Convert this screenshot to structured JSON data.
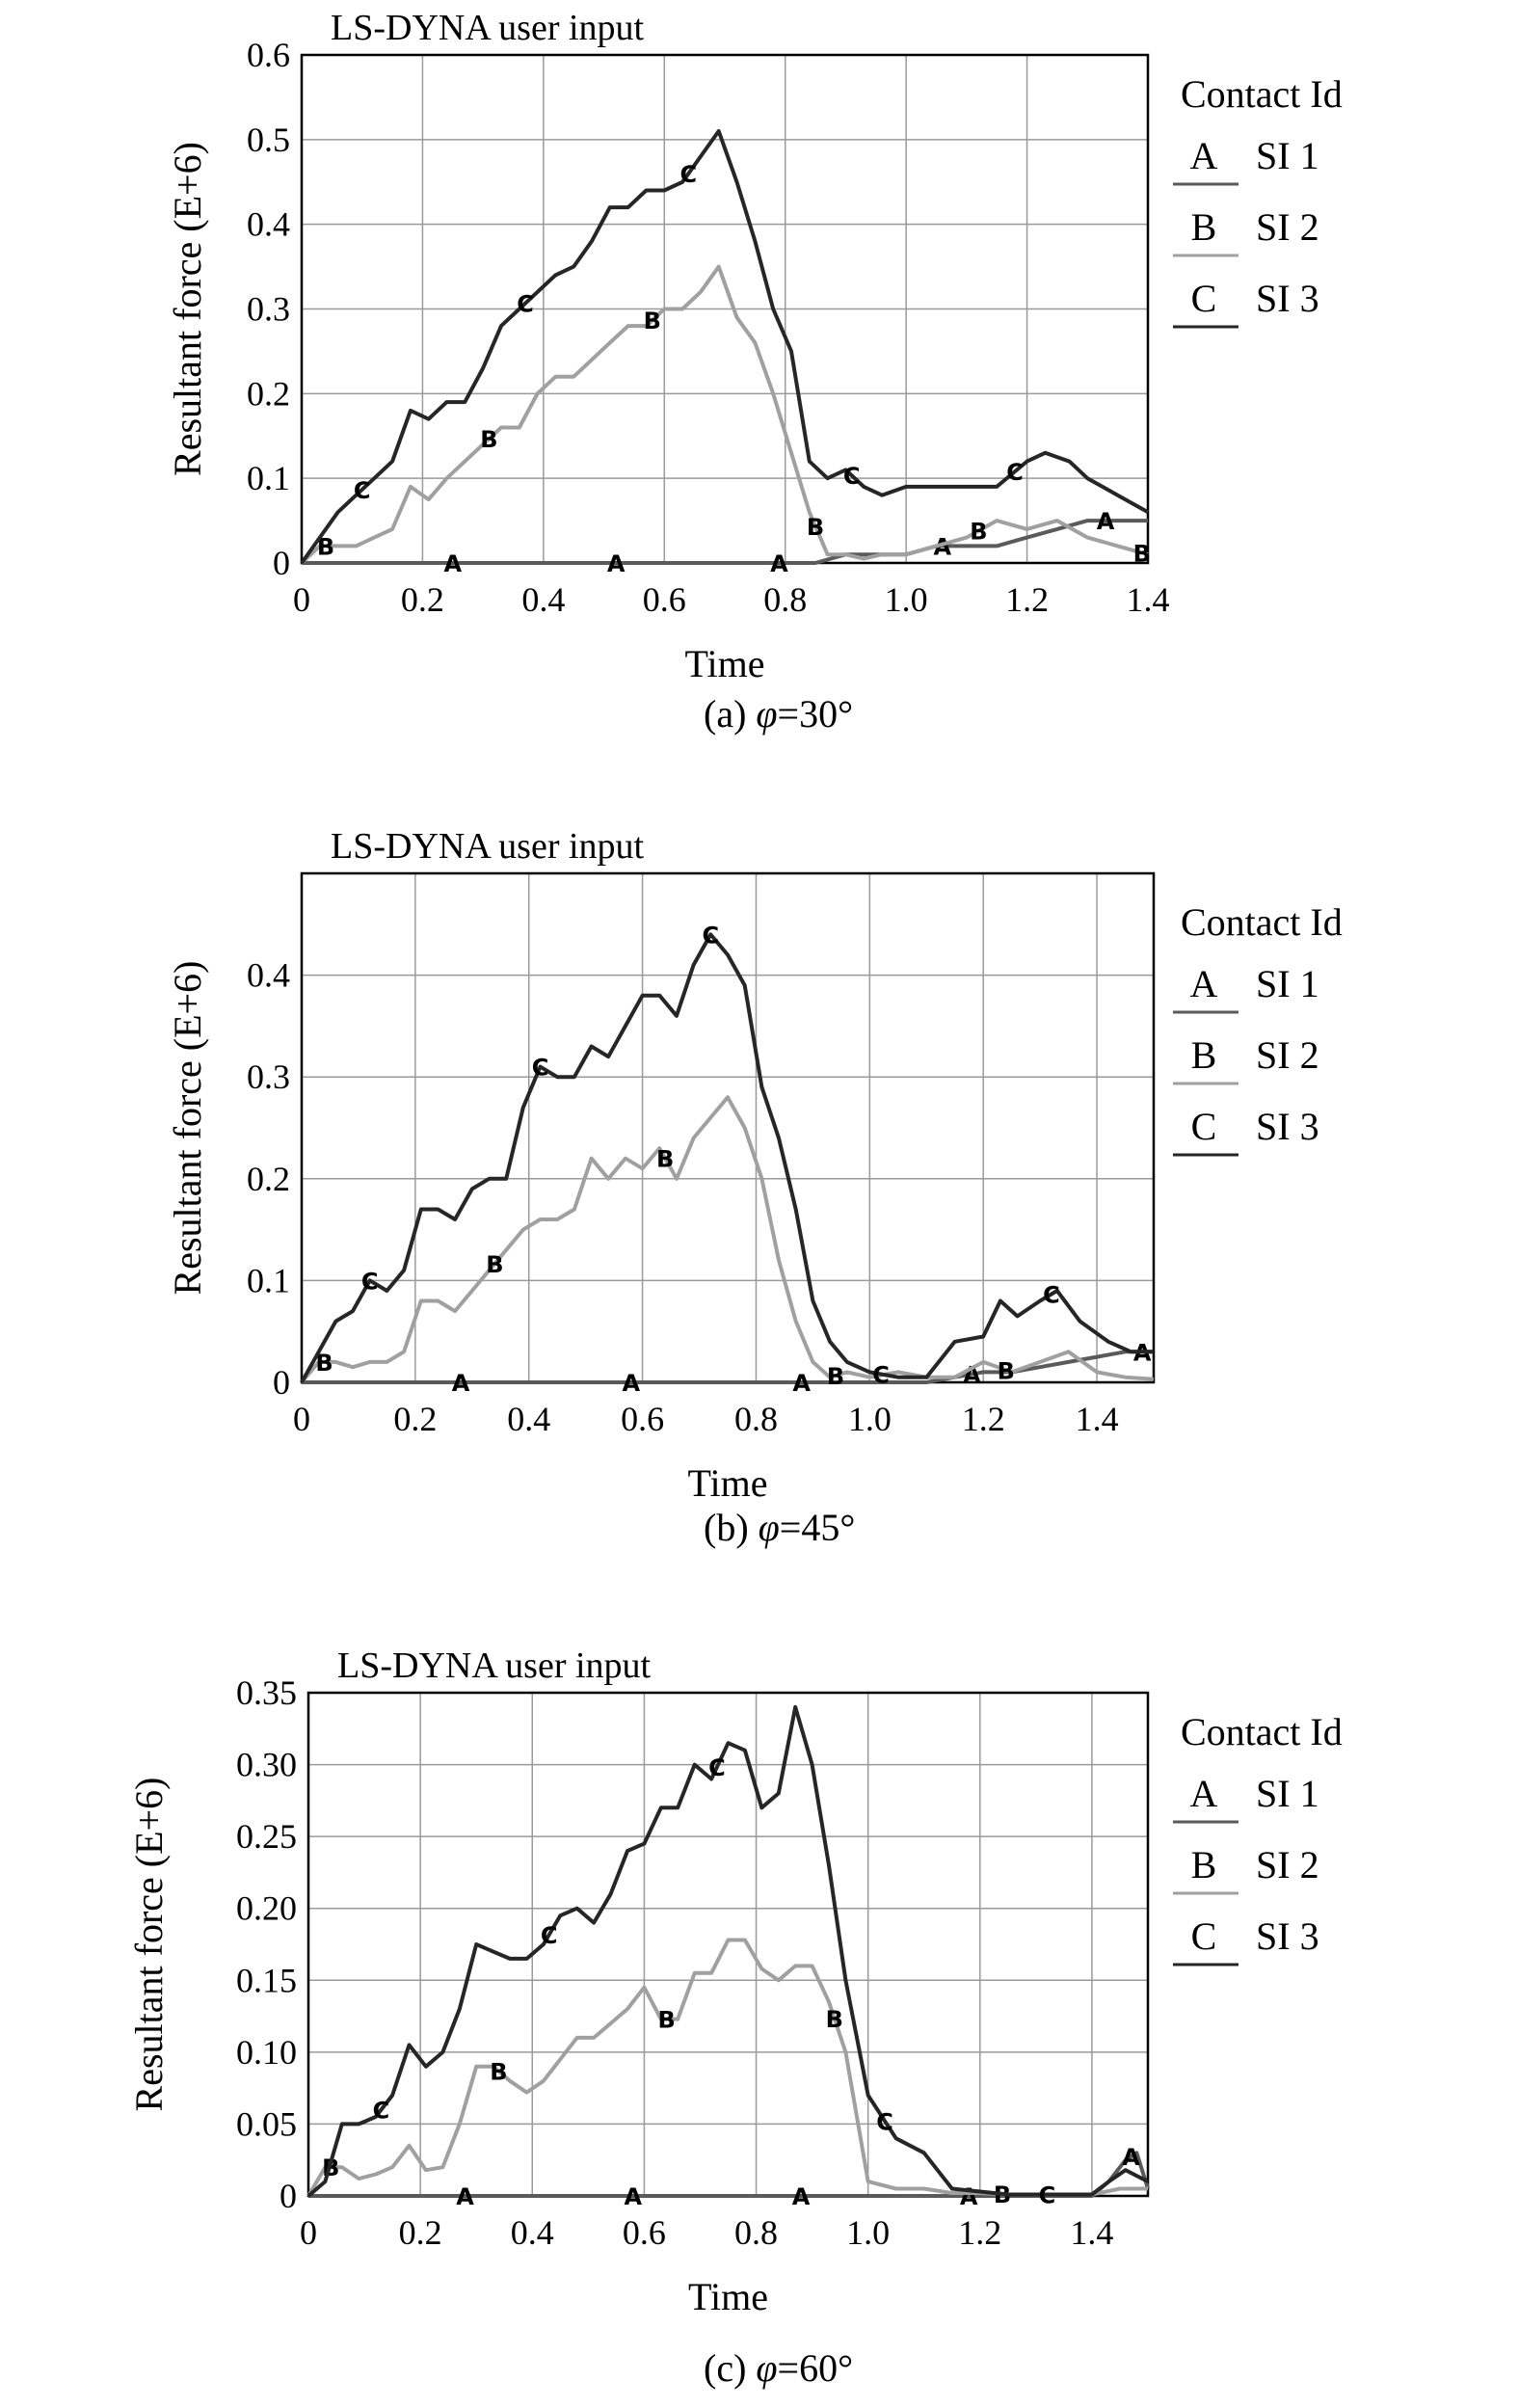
{
  "colors": {
    "A": "#5a5a5a",
    "B": "#a0a0a0",
    "C": "#262626",
    "grid": "#9a9a9a",
    "frame": "#000000",
    "background": "#ffffff"
  },
  "chart_data": [
    {
      "type": "line",
      "title": "LS-DYNA user input",
      "xlabel": "Time",
      "ylabel": "Resultant force (E+6)",
      "caption_prefix": "(a) ",
      "caption_symbol": "φ",
      "caption_value": "=30°",
      "xlim": [
        0,
        1.4
      ],
      "ylim": [
        0,
        0.6
      ],
      "xticks": [
        0,
        0.2,
        0.4,
        0.6,
        0.8,
        1.0,
        1.2,
        1.4
      ],
      "xtick_labels": [
        "0",
        "0.2",
        "0.4",
        "0.6",
        "0.8",
        "1.0",
        "1.2",
        "1.4"
      ],
      "yticks": [
        0,
        0.1,
        0.2,
        0.3,
        0.4,
        0.5,
        0.6
      ],
      "ytick_labels": [
        "0",
        "0.1",
        "0.2",
        "0.3",
        "0.4",
        "0.5",
        "0.6"
      ],
      "grid": true,
      "legend": {
        "title": "Contact Id",
        "position": "right",
        "entries": [
          {
            "key": "A",
            "label": "SI 1"
          },
          {
            "key": "B",
            "label": "SI 2"
          },
          {
            "key": "C",
            "label": "SI 3"
          }
        ]
      },
      "series": [
        {
          "name": "SI 1",
          "key": "A",
          "x": [
            0,
            0.85,
            0.9,
            0.95,
            1.0,
            1.05,
            1.1,
            1.15,
            1.2,
            1.25,
            1.3,
            1.35,
            1.4
          ],
          "y": [
            0,
            0,
            0.01,
            0.01,
            0.01,
            0.02,
            0.02,
            0.02,
            0.03,
            0.04,
            0.05,
            0.05,
            0.05
          ],
          "markers": [
            0.25,
            0.52,
            0.79,
            1.06,
            1.33
          ]
        },
        {
          "name": "SI 2",
          "key": "B",
          "x": [
            0,
            0.03,
            0.06,
            0.09,
            0.12,
            0.15,
            0.18,
            0.21,
            0.24,
            0.27,
            0.3,
            0.33,
            0.36,
            0.39,
            0.42,
            0.45,
            0.48,
            0.51,
            0.54,
            0.57,
            0.6,
            0.63,
            0.66,
            0.69,
            0.72,
            0.75,
            0.78,
            0.81,
            0.84,
            0.87,
            0.9,
            0.93,
            0.96,
            1.0,
            1.05,
            1.1,
            1.15,
            1.2,
            1.25,
            1.3,
            1.35,
            1.4
          ],
          "y": [
            0,
            0.02,
            0.02,
            0.02,
            0.03,
            0.04,
            0.09,
            0.075,
            0.1,
            0.12,
            0.14,
            0.16,
            0.16,
            0.2,
            0.22,
            0.22,
            0.24,
            0.26,
            0.28,
            0.28,
            0.3,
            0.3,
            0.32,
            0.35,
            0.29,
            0.26,
            0.2,
            0.13,
            0.06,
            0.01,
            0.01,
            0.005,
            0.01,
            0.01,
            0.02,
            0.03,
            0.05,
            0.04,
            0.05,
            0.03,
            0.02,
            0.01
          ],
          "markers": [
            0.04,
            0.31,
            0.58,
            0.85,
            1.12,
            1.39
          ]
        },
        {
          "name": "SI 3",
          "key": "C",
          "x": [
            0,
            0.03,
            0.06,
            0.09,
            0.12,
            0.15,
            0.18,
            0.21,
            0.24,
            0.27,
            0.3,
            0.33,
            0.36,
            0.39,
            0.42,
            0.45,
            0.48,
            0.51,
            0.54,
            0.57,
            0.6,
            0.63,
            0.66,
            0.69,
            0.72,
            0.75,
            0.78,
            0.81,
            0.84,
            0.87,
            0.9,
            0.93,
            0.96,
            1.0,
            1.05,
            1.1,
            1.15,
            1.2,
            1.23,
            1.27,
            1.3,
            1.35,
            1.4
          ],
          "y": [
            0,
            0.03,
            0.06,
            0.08,
            0.1,
            0.12,
            0.18,
            0.17,
            0.19,
            0.19,
            0.23,
            0.28,
            0.3,
            0.32,
            0.34,
            0.35,
            0.38,
            0.42,
            0.42,
            0.44,
            0.44,
            0.45,
            0.48,
            0.51,
            0.45,
            0.38,
            0.3,
            0.25,
            0.12,
            0.1,
            0.11,
            0.09,
            0.08,
            0.09,
            0.09,
            0.09,
            0.09,
            0.12,
            0.13,
            0.12,
            0.1,
            0.08,
            0.06
          ],
          "markers": [
            0.1,
            0.37,
            0.64,
            0.91,
            1.18
          ]
        }
      ]
    },
    {
      "type": "line",
      "title": "LS-DYNA user input",
      "xlabel": "Time",
      "ylabel": "Resultant force (E+6)",
      "caption_prefix": "(b) ",
      "caption_symbol": "φ",
      "caption_value": "=45°",
      "xlim": [
        0,
        1.5
      ],
      "ylim": [
        0,
        0.5
      ],
      "xticks": [
        0,
        0.2,
        0.4,
        0.6,
        0.8,
        1.0,
        1.2,
        1.4
      ],
      "xtick_labels": [
        "0",
        "0.2",
        "0.4",
        "0.6",
        "0.8",
        "1.0",
        "1.2",
        "1.4"
      ],
      "yticks": [
        0,
        0.1,
        0.2,
        0.3,
        0.4
      ],
      "ytick_labels": [
        "0",
        "0.1",
        "0.2",
        "0.3",
        "0.4"
      ],
      "grid": true,
      "legend": {
        "title": "Contact Id",
        "position": "right",
        "entries": [
          {
            "key": "A",
            "label": "SI 1"
          },
          {
            "key": "B",
            "label": "SI 2"
          },
          {
            "key": "C",
            "label": "SI 3"
          }
        ]
      },
      "series": [
        {
          "name": "SI 1",
          "key": "A",
          "x": [
            0,
            1.1,
            1.15,
            1.2,
            1.25,
            1.3,
            1.35,
            1.4,
            1.45,
            1.5
          ],
          "y": [
            0,
            0,
            0.005,
            0.01,
            0.01,
            0.015,
            0.02,
            0.025,
            0.03,
            0.03
          ],
          "markers": [
            0.28,
            0.58,
            0.88,
            1.18,
            1.48
          ]
        },
        {
          "name": "SI 2",
          "key": "B",
          "x": [
            0,
            0.03,
            0.06,
            0.09,
            0.12,
            0.15,
            0.18,
            0.21,
            0.24,
            0.27,
            0.3,
            0.33,
            0.36,
            0.39,
            0.42,
            0.45,
            0.48,
            0.51,
            0.54,
            0.57,
            0.6,
            0.63,
            0.66,
            0.69,
            0.72,
            0.75,
            0.78,
            0.81,
            0.84,
            0.87,
            0.9,
            0.93,
            0.96,
            1.0,
            1.05,
            1.1,
            1.15,
            1.2,
            1.25,
            1.3,
            1.35,
            1.4,
            1.45,
            1.5
          ],
          "y": [
            0,
            0.02,
            0.02,
            0.015,
            0.02,
            0.02,
            0.03,
            0.08,
            0.08,
            0.07,
            0.09,
            0.11,
            0.13,
            0.15,
            0.16,
            0.16,
            0.17,
            0.22,
            0.2,
            0.22,
            0.21,
            0.23,
            0.2,
            0.24,
            0.26,
            0.28,
            0.25,
            0.2,
            0.12,
            0.06,
            0.02,
            0.005,
            0.01,
            0.005,
            0.01,
            0.005,
            0.005,
            0.02,
            0.01,
            0.02,
            0.03,
            0.01,
            0.005,
            0.003
          ],
          "markers": [
            0.04,
            0.34,
            0.64,
            0.94,
            1.24
          ]
        },
        {
          "name": "SI 3",
          "key": "C",
          "x": [
            0,
            0.03,
            0.06,
            0.09,
            0.12,
            0.15,
            0.18,
            0.21,
            0.24,
            0.27,
            0.3,
            0.33,
            0.36,
            0.39,
            0.42,
            0.45,
            0.48,
            0.51,
            0.54,
            0.57,
            0.6,
            0.63,
            0.66,
            0.69,
            0.72,
            0.75,
            0.78,
            0.81,
            0.84,
            0.87,
            0.9,
            0.93,
            0.96,
            1.0,
            1.05,
            1.1,
            1.15,
            1.2,
            1.23,
            1.26,
            1.3,
            1.33,
            1.37,
            1.42,
            1.46,
            1.5
          ],
          "y": [
            0,
            0.03,
            0.06,
            0.07,
            0.1,
            0.09,
            0.11,
            0.17,
            0.17,
            0.16,
            0.19,
            0.2,
            0.2,
            0.27,
            0.31,
            0.3,
            0.3,
            0.33,
            0.32,
            0.35,
            0.38,
            0.38,
            0.36,
            0.41,
            0.44,
            0.42,
            0.39,
            0.29,
            0.24,
            0.17,
            0.08,
            0.04,
            0.02,
            0.01,
            0.005,
            0.005,
            0.04,
            0.045,
            0.08,
            0.065,
            0.08,
            0.09,
            0.06,
            0.04,
            0.03,
            0.03
          ],
          "markers": [
            0.12,
            0.42,
            0.72,
            1.02,
            1.32
          ]
        }
      ]
    },
    {
      "type": "line",
      "title": "LS-DYNA user input",
      "xlabel": "Time",
      "ylabel": "Resultant force (E+6)",
      "caption_prefix": "(c) ",
      "caption_symbol": "φ",
      "caption_value": "=60°",
      "xlim": [
        0,
        1.5
      ],
      "ylim": [
        0,
        0.35
      ],
      "xticks": [
        0,
        0.2,
        0.4,
        0.6,
        0.8,
        1.0,
        1.2,
        1.4
      ],
      "xtick_labels": [
        "0",
        "0.2",
        "0.4",
        "0.6",
        "0.8",
        "1.0",
        "1.2",
        "1.4"
      ],
      "yticks": [
        0,
        0.05,
        0.1,
        0.15,
        0.2,
        0.25,
        0.3,
        0.35
      ],
      "ytick_labels": [
        "0",
        "0.05",
        "0.10",
        "0.15",
        "0.20",
        "0.25",
        "0.30",
        "0.35"
      ],
      "grid": true,
      "legend": {
        "title": "Contact Id",
        "position": "right",
        "entries": [
          {
            "key": "A",
            "label": "SI 1"
          },
          {
            "key": "B",
            "label": "SI 2"
          },
          {
            "key": "C",
            "label": "SI 3"
          }
        ]
      },
      "series": [
        {
          "name": "SI 1",
          "key": "A",
          "x": [
            0,
            1.4,
            1.43,
            1.46,
            1.48,
            1.5
          ],
          "y": [
            0,
            0,
            0.01,
            0.025,
            0.03,
            0.005
          ],
          "markers": [
            0.28,
            0.58,
            0.88,
            1.18,
            1.47
          ]
        },
        {
          "name": "SI 2",
          "key": "B",
          "x": [
            0,
            0.03,
            0.06,
            0.09,
            0.12,
            0.15,
            0.18,
            0.21,
            0.24,
            0.27,
            0.3,
            0.33,
            0.36,
            0.39,
            0.42,
            0.45,
            0.48,
            0.51,
            0.54,
            0.57,
            0.6,
            0.63,
            0.66,
            0.69,
            0.72,
            0.75,
            0.78,
            0.81,
            0.84,
            0.87,
            0.9,
            0.93,
            0.96,
            1.0,
            1.05,
            1.1,
            1.15,
            1.2,
            1.25,
            1.3,
            1.35,
            1.4,
            1.45,
            1.5
          ],
          "y": [
            0,
            0.02,
            0.02,
            0.012,
            0.015,
            0.02,
            0.035,
            0.018,
            0.02,
            0.05,
            0.09,
            0.09,
            0.08,
            0.072,
            0.08,
            0.095,
            0.11,
            0.11,
            0.12,
            0.13,
            0.145,
            0.123,
            0.123,
            0.155,
            0.155,
            0.178,
            0.178,
            0.158,
            0.15,
            0.16,
            0.16,
            0.135,
            0.1,
            0.01,
            0.005,
            0.005,
            0.002,
            0.002,
            0.001,
            0.001,
            0.001,
            0.001,
            0.005,
            0.005
          ],
          "markers": [
            0.04,
            0.34,
            0.64,
            0.94,
            1.24
          ]
        },
        {
          "name": "SI 3",
          "key": "C",
          "x": [
            0,
            0.03,
            0.06,
            0.09,
            0.12,
            0.15,
            0.18,
            0.21,
            0.24,
            0.27,
            0.3,
            0.33,
            0.36,
            0.39,
            0.42,
            0.45,
            0.48,
            0.51,
            0.54,
            0.57,
            0.6,
            0.63,
            0.66,
            0.69,
            0.72,
            0.75,
            0.78,
            0.81,
            0.84,
            0.87,
            0.9,
            0.93,
            0.96,
            1.0,
            1.05,
            1.1,
            1.15,
            1.2,
            1.25,
            1.3,
            1.35,
            1.4,
            1.43,
            1.46,
            1.5
          ],
          "y": [
            0,
            0.01,
            0.05,
            0.05,
            0.055,
            0.07,
            0.105,
            0.09,
            0.1,
            0.13,
            0.175,
            0.17,
            0.165,
            0.165,
            0.175,
            0.195,
            0.2,
            0.19,
            0.21,
            0.24,
            0.245,
            0.27,
            0.27,
            0.3,
            0.29,
            0.315,
            0.31,
            0.27,
            0.28,
            0.34,
            0.3,
            0.23,
            0.15,
            0.07,
            0.04,
            0.03,
            0.005,
            0.003,
            0.001,
            0.001,
            0.001,
            0.001,
            0.01,
            0.018,
            0.01
          ],
          "markers": [
            0.13,
            0.43,
            0.73,
            1.03,
            1.32
          ]
        }
      ]
    }
  ]
}
